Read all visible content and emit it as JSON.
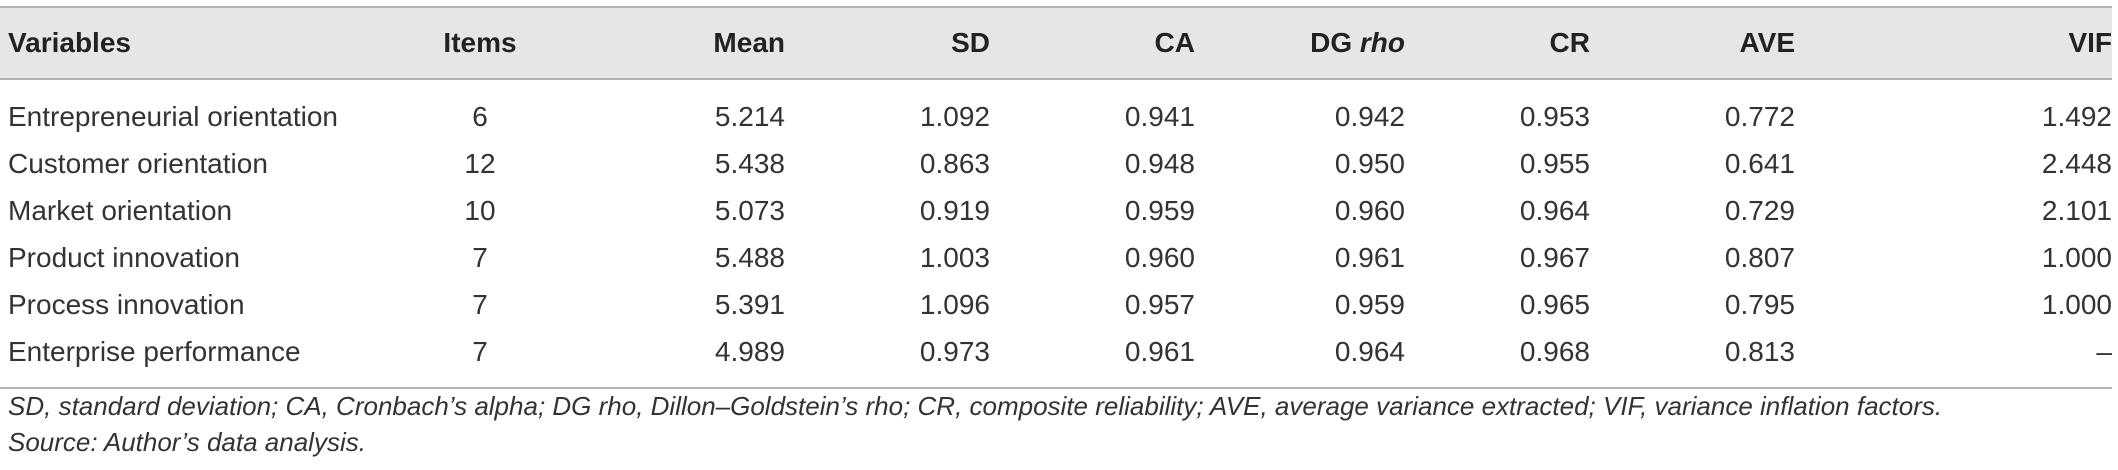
{
  "table": {
    "headers": {
      "variables": "Variables",
      "items": "Items",
      "mean": "Mean",
      "sd": "SD",
      "ca": "CA",
      "dg_prefix": "DG",
      "dg_rho": "rho",
      "cr": "CR",
      "ave": "AVE",
      "vif": "VIF"
    },
    "rows": [
      {
        "variable": "Entrepreneurial orientation",
        "items": "6",
        "mean": "5.214",
        "sd": "1.092",
        "ca": "0.941",
        "dg_rho": "0.942",
        "cr": "0.953",
        "ave": "0.772",
        "vif": "1.492"
      },
      {
        "variable": "Customer orientation",
        "items": "12",
        "mean": "5.438",
        "sd": "0.863",
        "ca": "0.948",
        "dg_rho": "0.950",
        "cr": "0.955",
        "ave": "0.641",
        "vif": "2.448"
      },
      {
        "variable": "Market orientation",
        "items": "10",
        "mean": "5.073",
        "sd": "0.919",
        "ca": "0.959",
        "dg_rho": "0.960",
        "cr": "0.964",
        "ave": "0.729",
        "vif": "2.101"
      },
      {
        "variable": "Product innovation",
        "items": "7",
        "mean": "5.488",
        "sd": "1.003",
        "ca": "0.960",
        "dg_rho": "0.961",
        "cr": "0.967",
        "ave": "0.807",
        "vif": "1.000"
      },
      {
        "variable": "Process innovation",
        "items": "7",
        "mean": "5.391",
        "sd": "1.096",
        "ca": "0.957",
        "dg_rho": "0.959",
        "cr": "0.965",
        "ave": "0.795",
        "vif": "1.000"
      },
      {
        "variable": "Enterprise performance",
        "items": "7",
        "mean": "4.989",
        "sd": "0.973",
        "ca": "0.961",
        "dg_rho": "0.964",
        "cr": "0.968",
        "ave": "0.813",
        "vif": "–"
      }
    ]
  },
  "footnote": {
    "line1": "SD, standard deviation; CA, Cronbach’s alpha; DG rho, Dillon–Goldstein’s rho; CR, composite reliability; AVE, average variance extracted; VIF, variance inflation factors.",
    "line2": "Source: Author’s data analysis."
  }
}
